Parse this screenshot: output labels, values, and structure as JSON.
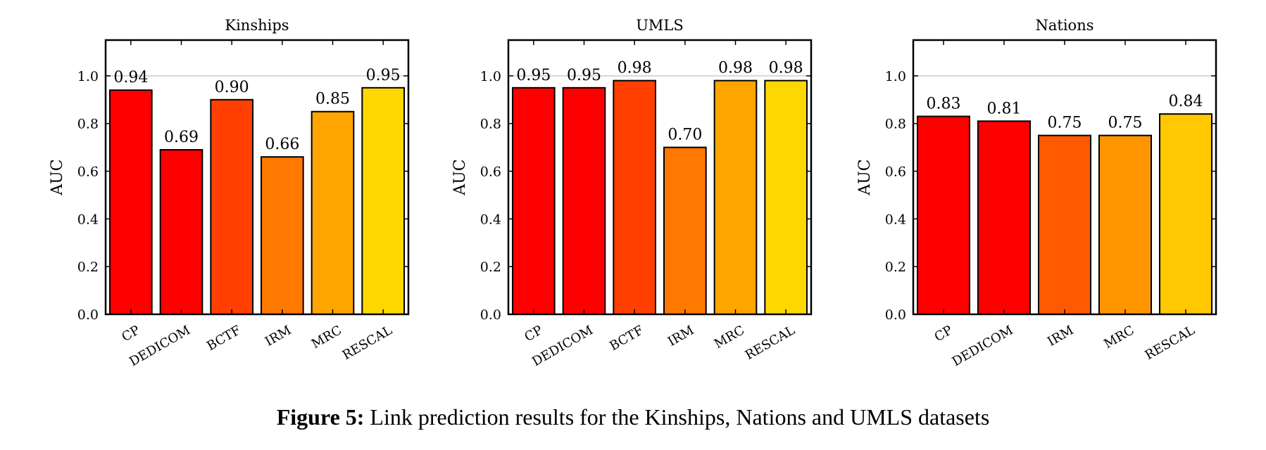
{
  "caption": {
    "label": "Figure 5:",
    "text": " Link prediction results for the Kinships, Nations and UMLS datasets"
  },
  "chart_data": [
    {
      "type": "bar",
      "title": "Kinships",
      "ylabel": "AUC",
      "xlabel": "",
      "ylim": [
        0,
        1.15
      ],
      "yticks": [
        "0.0",
        "0.2",
        "0.4",
        "0.6",
        "0.8",
        "1.0"
      ],
      "grid": "horizontal at 1.0",
      "categories": [
        "CP",
        "DEDICOM",
        "BCTF",
        "IRM",
        "MRC",
        "RESCAL"
      ],
      "values": [
        0.94,
        0.69,
        0.9,
        0.66,
        0.85,
        0.95
      ],
      "value_labels": [
        "0.94",
        "0.69",
        "0.90",
        "0.66",
        "0.85",
        "0.95"
      ],
      "colors": [
        "#ff0000",
        "#ff0000",
        "#ff4000",
        "#ff7800",
        "#ffa500",
        "#ffd700"
      ]
    },
    {
      "type": "bar",
      "title": "UMLS",
      "ylabel": "AUC",
      "xlabel": "",
      "ylim": [
        0,
        1.15
      ],
      "yticks": [
        "0.0",
        "0.2",
        "0.4",
        "0.6",
        "0.8",
        "1.0"
      ],
      "grid": "horizontal at 1.0",
      "categories": [
        "CP",
        "DEDICOM",
        "BCTF",
        "IRM",
        "MRC",
        "RESCAL"
      ],
      "values": [
        0.95,
        0.95,
        0.98,
        0.7,
        0.98,
        0.98
      ],
      "value_labels": [
        "0.95",
        "0.95",
        "0.98",
        "0.70",
        "0.98",
        "0.98"
      ],
      "colors": [
        "#ff0000",
        "#ff0000",
        "#ff4000",
        "#ff7800",
        "#ffa500",
        "#ffd700"
      ]
    },
    {
      "type": "bar",
      "title": "Nations",
      "ylabel": "AUC",
      "xlabel": "",
      "ylim": [
        0,
        1.15
      ],
      "yticks": [
        "0.0",
        "0.2",
        "0.4",
        "0.6",
        "0.8",
        "1.0"
      ],
      "grid": "horizontal at 1.0",
      "categories": [
        "CP",
        "DEDICOM",
        "IRM",
        "MRC",
        "RESCAL"
      ],
      "values": [
        0.83,
        0.81,
        0.75,
        0.75,
        0.84
      ],
      "value_labels": [
        "0.83",
        "0.81",
        "0.75",
        "0.75",
        "0.84"
      ],
      "colors": [
        "#ff0000",
        "#ff0000",
        "#ff5a00",
        "#ff9600",
        "#ffc800"
      ]
    }
  ]
}
